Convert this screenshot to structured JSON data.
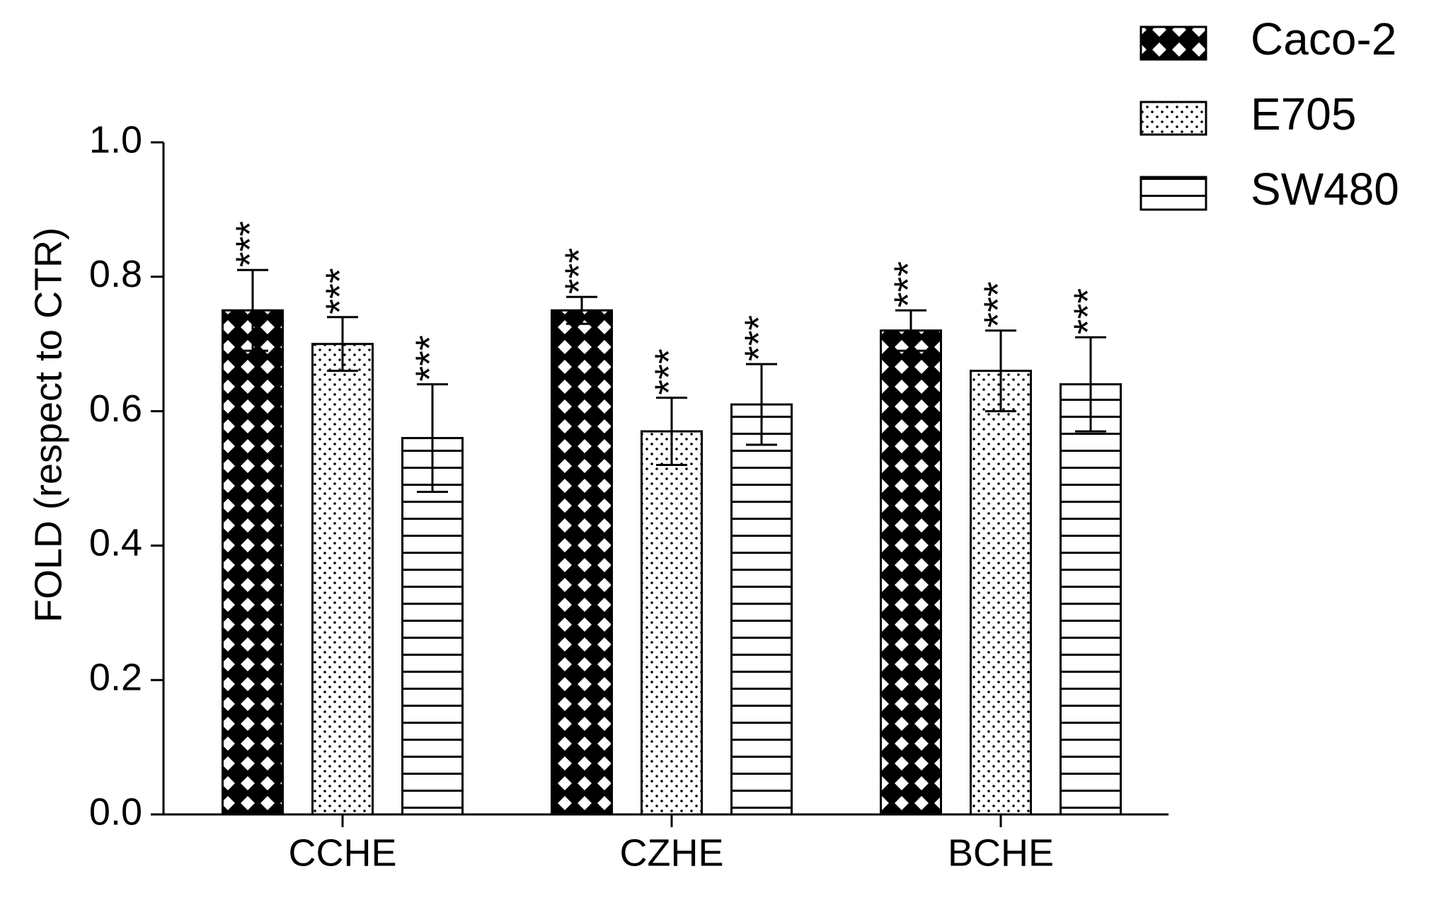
{
  "chart_data": {
    "type": "bar",
    "y_label": "FOLD (respect to CTR)",
    "categories": [
      "CCHE",
      "CZHE",
      "BCHE"
    ],
    "series": [
      {
        "name": "Caco-2",
        "color": "#000000",
        "pattern": "crosshatch",
        "values": [
          0.75,
          0.75,
          0.72
        ],
        "errors": [
          0.06,
          0.02,
          0.03
        ],
        "labels": [
          "***",
          "***",
          "***"
        ]
      },
      {
        "name": "E705",
        "color": "#000000",
        "pattern": "dots",
        "values": [
          0.7,
          0.57,
          0.66
        ],
        "errors": [
          0.04,
          0.05,
          0.06
        ],
        "labels": [
          "***",
          "***",
          "***"
        ]
      },
      {
        "name": "SW480",
        "color": "#000000",
        "pattern": "hlines",
        "values": [
          0.56,
          0.61,
          0.64
        ],
        "errors": [
          0.08,
          0.06,
          0.07
        ],
        "labels": [
          "***",
          "***",
          "***"
        ]
      }
    ],
    "ylim": [
      0,
      1.0
    ],
    "yticks": [
      {
        "value": 0,
        "label": "0.0"
      },
      0.2,
      0.4,
      0.6,
      0.8,
      {
        "value": 1.0,
        "label": "1.0"
      }
    ],
    "legend": "top-right",
    "grid": false
  }
}
